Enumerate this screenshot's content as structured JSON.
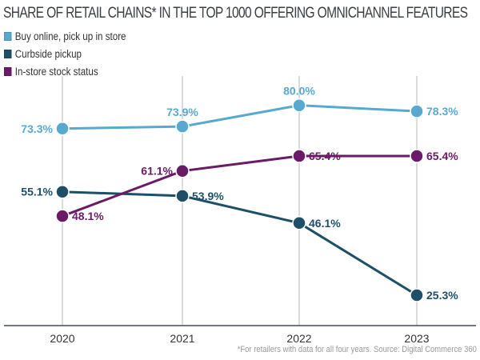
{
  "chart_data": {
    "type": "line",
    "title": "SHARE OF RETAIL CHAINS* IN THE TOP 1000 OFFERING OMNICHANNEL FEATURES",
    "categories": [
      "2020",
      "2021",
      "2022",
      "2023"
    ],
    "xlabel": "",
    "ylabel": "",
    "ylim": [
      20,
      85
    ],
    "grid": "vertical lines at categories",
    "legend": "top-left",
    "series": [
      {
        "name": "Buy online, pick up in store",
        "color": "#58a9d0",
        "values": [
          73.3,
          73.9,
          80.0,
          78.3
        ],
        "labels": [
          "73.3%",
          "73.9%",
          "80.0%",
          "78.3%"
        ]
      },
      {
        "name": "Curbside pickup",
        "color": "#1d5068",
        "values": [
          55.1,
          53.9,
          46.1,
          25.3
        ],
        "labels": [
          "55.1%",
          "53.9%",
          "46.1%",
          "25.3%"
        ]
      },
      {
        "name": "In-store stock status",
        "color": "#6a1a66",
        "values": [
          48.1,
          61.1,
          65.4,
          65.4
        ],
        "labels": [
          "48.1%",
          "61.1%",
          "65.4%",
          "65.4%"
        ]
      }
    ],
    "footnote": "*For retailers with data for all four years. Source: Digital Commerce 360"
  }
}
